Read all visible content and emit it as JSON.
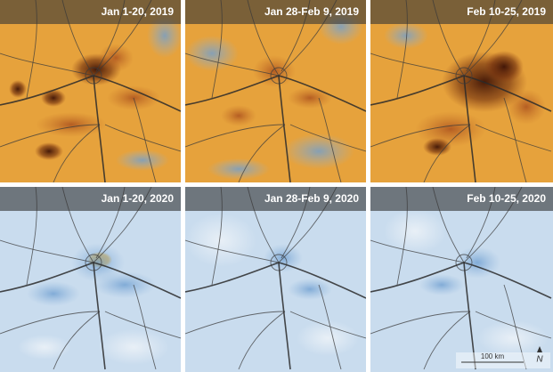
{
  "panels": [
    {
      "label": "Jan 1-20, 2019"
    },
    {
      "label": "Jan 28-Feb 9, 2019"
    },
    {
      "label": "Feb 10-25, 2019"
    },
    {
      "label": "Jan 1-20, 2020"
    },
    {
      "label": "Jan 28-Feb 9, 2020"
    },
    {
      "label": "Feb 10-25, 2020"
    }
  ],
  "scale_bar": {
    "label": "100 km"
  },
  "north_arrow": {
    "label": "N"
  }
}
